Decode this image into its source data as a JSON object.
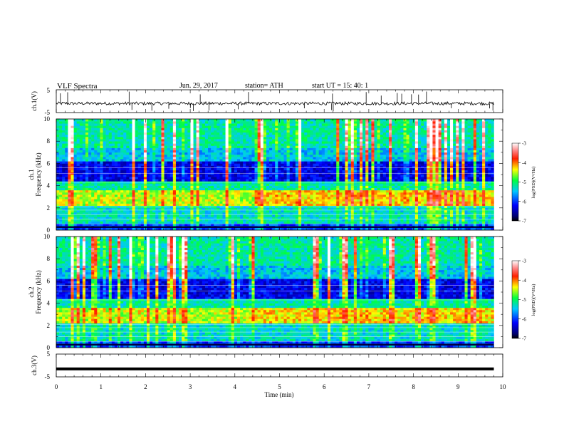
{
  "header": {
    "title": "VLF  Spectra",
    "date": "Jun. 29, 2017",
    "station": "station= ATH",
    "start": "start  UT  =    15: 40: 1"
  },
  "chart_data": [
    {
      "type": "line",
      "panel": "ch1-waveform",
      "ylabel": "ch.1(V)",
      "ylim": [
        -5,
        5
      ],
      "yticks": [
        "5",
        "-5"
      ],
      "description_level": "trace near -1 V with spikes"
    },
    {
      "type": "heatmap",
      "panel": "ch1-spectrogram",
      "ylabel": "ch.1\nFrequency  (kHz)",
      "ylim": [
        0,
        10
      ],
      "yticks": [
        "0",
        "2",
        "4",
        "6",
        "8",
        "10"
      ],
      "colorbar": {
        "label": "log(PSD)(V²/Hz)",
        "range": [
          -7,
          -3
        ],
        "ticks": [
          "-3",
          "-4",
          "-5",
          "-6",
          "-7"
        ]
      }
    },
    {
      "type": "heatmap",
      "panel": "ch2-spectrogram",
      "ylabel": "ch.2\nFrequency  (kHz)",
      "ylim": [
        0,
        10
      ],
      "yticks": [
        "0",
        "2",
        "4",
        "6",
        "8",
        "10"
      ],
      "colorbar": {
        "label": "log(PSD)(V²/Hz)",
        "range": [
          -7,
          -3
        ],
        "ticks": [
          "-3",
          "-4",
          "-5",
          "-6",
          "-7"
        ]
      }
    },
    {
      "type": "line",
      "panel": "ch3-waveform",
      "ylabel": "ch.3(V)",
      "ylim": [
        -5,
        5
      ],
      "yticks": [
        "5",
        "-5"
      ],
      "level": -1.5
    }
  ],
  "xaxis": {
    "label": "Time  (min)",
    "range": [
      0,
      10
    ],
    "ticks": [
      "0",
      "1",
      "2",
      "3",
      "4",
      "5",
      "6",
      "7",
      "8",
      "9",
      "10"
    ],
    "data_end": 9.8
  },
  "colors": {
    "axis": "#000000",
    "trace": "#000000",
    "background": "#ffffff",
    "colormap": [
      "#000000",
      "#000080",
      "#0000ff",
      "#00ffff",
      "#00ff00",
      "#ffff00",
      "#ff0000",
      "#ffffff"
    ]
  }
}
